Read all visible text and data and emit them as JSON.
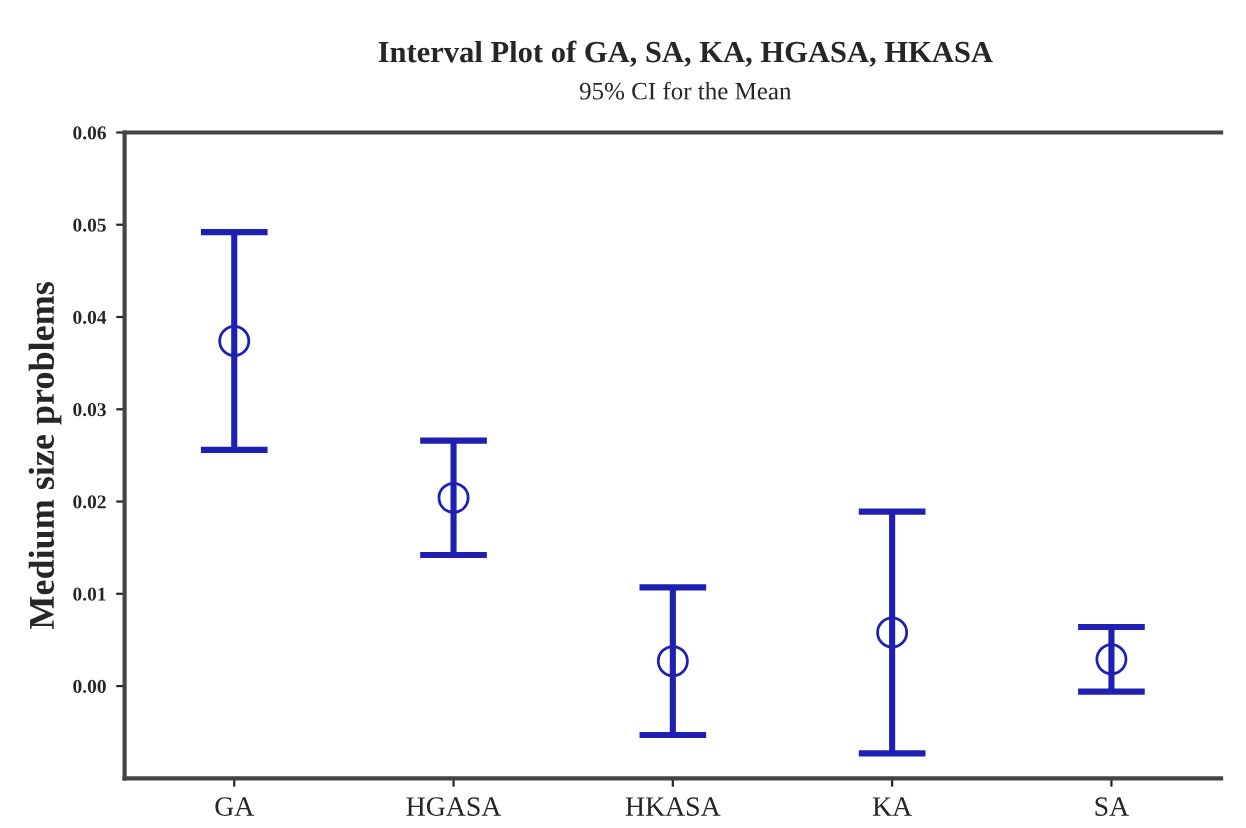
{
  "chart_data": {
    "type": "scatter",
    "title": "Interval Plot of GA, SA, KA, HGASA, HKASA",
    "subtitle": "95% CI for the Mean",
    "ylabel": "Medium size problems",
    "categories": [
      "GA",
      "HGASA",
      "HKASA",
      "KA",
      "SA"
    ],
    "series": [
      {
        "color": "#1f1fb4",
        "values": [
          0.0374,
          0.0204,
          0.0027,
          0.0058,
          0.0029
        ],
        "errors": [
          0.0118,
          0.0062,
          0.008,
          0.0131,
          0.0035
        ]
      }
    ],
    "marker": "circle",
    "ylim": [
      -0.01,
      0.06
    ],
    "yticks": [
      {
        "value": 0,
        "label": "0.00"
      },
      {
        "value": 0.01,
        "label": "0.01"
      },
      {
        "value": 0.02,
        "label": "0.02"
      },
      {
        "value": 0.03,
        "label": "0.03"
      },
      {
        "value": 0.04,
        "label": "0.04"
      },
      {
        "value": 0.05,
        "label": "0.05"
      },
      {
        "value": 0.06,
        "label": "0.06"
      }
    ],
    "grid": false,
    "legend": false
  }
}
